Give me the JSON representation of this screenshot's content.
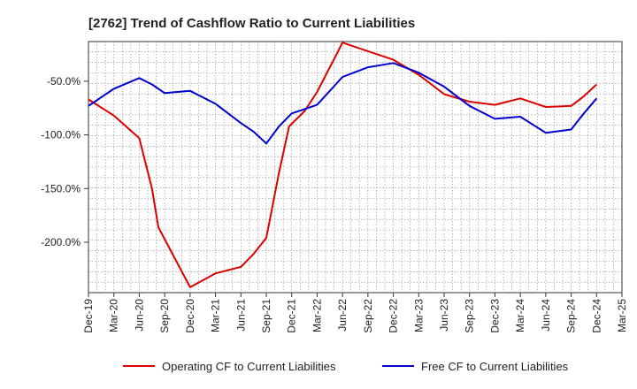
{
  "chart_data": {
    "type": "line",
    "title": "[2762]  Trend of Cashflow Ratio to Current Liabilities",
    "xlabel": "",
    "ylabel": "",
    "x": [
      "Dec-19",
      "Mar-20",
      "Jun-20",
      "Sep-20",
      "Dec-20",
      "Mar-21",
      "Jun-21",
      "Sep-21",
      "Dec-21",
      "Mar-22",
      "Jun-22",
      "Sep-22",
      "Dec-22",
      "Mar-23",
      "Jun-23",
      "Sep-23",
      "Dec-23",
      "Mar-24",
      "Jun-24",
      "Sep-24",
      "Dec-24",
      "Mar-25"
    ],
    "x_ticks": [
      "Dec-19",
      "Mar-20",
      "Jun-20",
      "Sep-20",
      "Dec-20",
      "Mar-21",
      "Jun-21",
      "Sep-21",
      "Dec-21",
      "Mar-22",
      "Jun-22",
      "Sep-22",
      "Dec-22",
      "Mar-23",
      "Jun-23",
      "Sep-23",
      "Dec-23",
      "Mar-24",
      "Jun-24",
      "Sep-24",
      "Dec-24",
      "Mar-25"
    ],
    "y_ticks": [
      -50,
      -100,
      -150,
      -200
    ],
    "y_tick_labels": [
      "-50.0%",
      "-100.0%",
      "-150.0%",
      "-200.0%"
    ],
    "ylim": [
      -247,
      -13
    ],
    "grid": true,
    "legend_position": "bottom",
    "series": [
      {
        "name": "Operating CF to Current Liabilities",
        "color": "#dd0000",
        "values": [
          [
            0,
            -67
          ],
          [
            1,
            -82
          ],
          [
            2,
            -103
          ],
          [
            2.5,
            -150
          ],
          [
            2.75,
            -186
          ],
          [
            4,
            -242
          ],
          [
            5,
            -229
          ],
          [
            6,
            -223
          ],
          [
            6.5,
            -211
          ],
          [
            7,
            -196
          ],
          [
            7.5,
            -135
          ],
          [
            7.9,
            -92
          ],
          [
            8.5,
            -78
          ],
          [
            9,
            -60
          ],
          [
            9.7,
            -28
          ],
          [
            10,
            -14
          ],
          [
            11,
            -22
          ],
          [
            12,
            -30
          ],
          [
            13,
            -44
          ],
          [
            14,
            -62
          ],
          [
            15,
            -69
          ],
          [
            16,
            -72
          ],
          [
            17,
            -66
          ],
          [
            18,
            -74
          ],
          [
            19,
            -73
          ],
          [
            19.5,
            -64
          ],
          [
            20,
            -53
          ]
        ]
      },
      {
        "name": "Free CF to Current Liabilities",
        "color": "#0000cc",
        "values": [
          [
            0,
            -73
          ],
          [
            1,
            -57
          ],
          [
            2,
            -47
          ],
          [
            2.5,
            -53
          ],
          [
            3,
            -61
          ],
          [
            4,
            -59
          ],
          [
            5,
            -71
          ],
          [
            6,
            -89
          ],
          [
            6.5,
            -97
          ],
          [
            7,
            -108
          ],
          [
            7.5,
            -92
          ],
          [
            8,
            -80
          ],
          [
            8.5,
            -76
          ],
          [
            9,
            -72
          ],
          [
            10,
            -46
          ],
          [
            11,
            -37
          ],
          [
            12,
            -33
          ],
          [
            13,
            -42
          ],
          [
            14,
            -55
          ],
          [
            15,
            -73
          ],
          [
            16,
            -85
          ],
          [
            17,
            -83
          ],
          [
            18,
            -98
          ],
          [
            19,
            -95
          ],
          [
            19.5,
            -80
          ],
          [
            20,
            -66
          ]
        ]
      }
    ]
  }
}
